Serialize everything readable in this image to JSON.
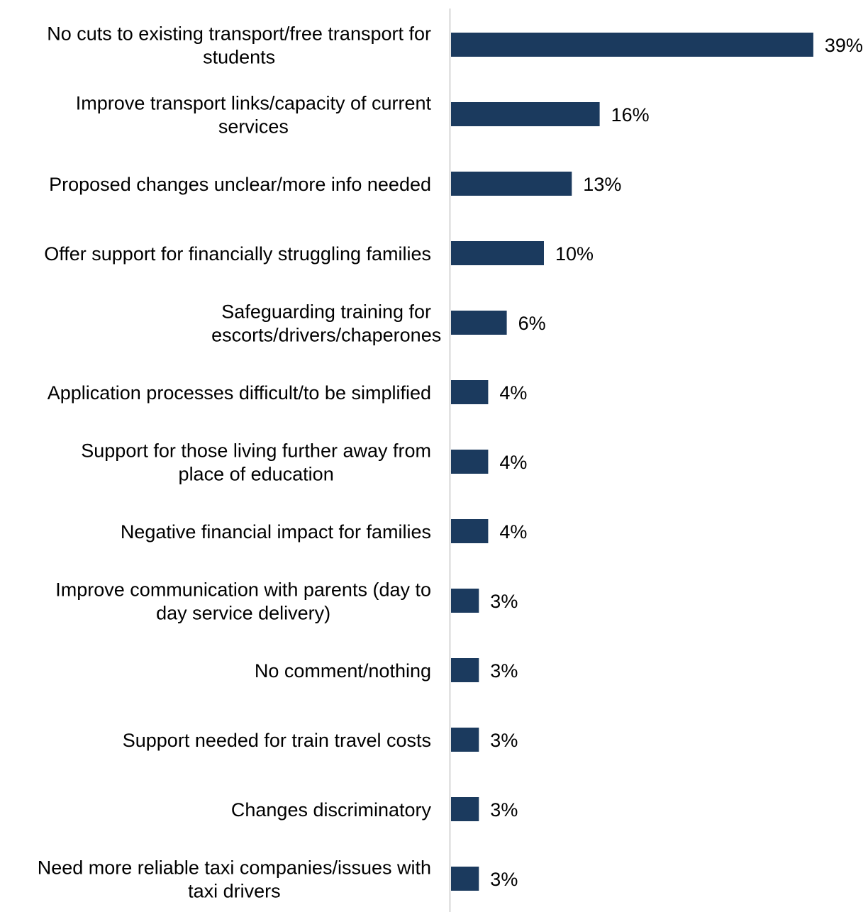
{
  "chart_data": {
    "type": "bar",
    "orientation": "horizontal",
    "categories": [
      [
        "No cuts to existing transport/free transport for",
        "students"
      ],
      [
        "Improve transport links/capacity of current",
        "services"
      ],
      [
        "Proposed changes unclear/more info needed"
      ],
      [
        "Offer support for financially struggling families"
      ],
      [
        "Safeguarding training for ",
        "escorts/drivers/chaperones"
      ],
      [
        "Application processes difficult/to be simplified"
      ],
      [
        "Support for those living further away from",
        "place of education"
      ],
      [
        "Negative financial impact for families"
      ],
      [
        "Improve communication with parents (day to",
        "day service delivery)"
      ],
      [
        "No comment/nothing"
      ],
      [
        "Support needed for train travel costs"
      ],
      [
        "Changes discriminatory"
      ],
      [
        "Need more reliable taxi companies/issues with",
        "taxi drivers"
      ]
    ],
    "values": [
      39,
      16,
      13,
      10,
      6,
      4,
      4,
      4,
      3,
      3,
      3,
      3,
      3
    ],
    "value_labels": [
      "39%",
      "16%",
      "13%",
      "10%",
      "6%",
      "4%",
      "4%",
      "4%",
      "3%",
      "3%",
      "3%",
      "3%",
      "3%"
    ],
    "bar_color": "#1b3a5e",
    "axis_color": "#c8c8c8",
    "grid": false,
    "legend": "none"
  }
}
